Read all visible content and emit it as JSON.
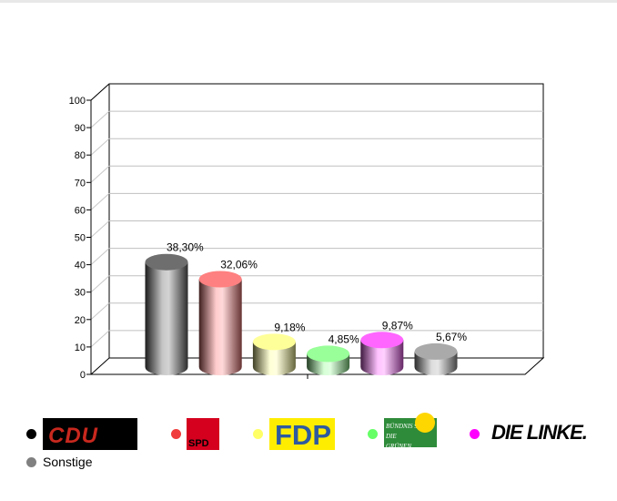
{
  "chart_data": {
    "type": "bar",
    "style": "3d-cylinder",
    "categories": [
      "CDU",
      "SPD",
      "FDP",
      "BÜNDNIS 90 DIE GRÜNEN",
      "DIE LINKE.",
      "Sonstige"
    ],
    "values": [
      38.3,
      32.06,
      9.18,
      4.85,
      9.87,
      5.67
    ],
    "data_labels": [
      "38,30%",
      "32,06%",
      "9,18%",
      "4,85%",
      "9,87%",
      "5,67%"
    ],
    "colors": [
      "#6e6e6e",
      "#ff8080",
      "#ffff99",
      "#99ff99",
      "#ff66ff",
      "#aaaaaa"
    ],
    "legend_dot_colors": [
      "#000000",
      "#f03c3c",
      "#ffff66",
      "#66ff66",
      "#ff00ff",
      "#808080"
    ],
    "ylim": [
      0,
      100
    ],
    "yticks": [
      "0",
      "10",
      "20",
      "30",
      "40",
      "50",
      "60",
      "70",
      "80",
      "90",
      "100"
    ],
    "grid": true,
    "legend_placement": "bottom"
  },
  "legend": {
    "logos": [
      {
        "text": "CDU",
        "bg": "#000000",
        "fg": "#c8281e"
      },
      {
        "text": "SPD",
        "bg": "#d4001e",
        "fg": "#000000"
      },
      {
        "text": "FDP",
        "bg": "#ffed00",
        "fg": "#2d5aa0"
      },
      {
        "text": "BÜNDNIS 90 DIE GRÜNEN",
        "bg": "#2e8b3a",
        "fg": "#ffffff"
      },
      {
        "text": "DIE LINKE.",
        "bg": "#ffffff",
        "fg": "#000000"
      }
    ],
    "other_label": "Sonstige"
  }
}
